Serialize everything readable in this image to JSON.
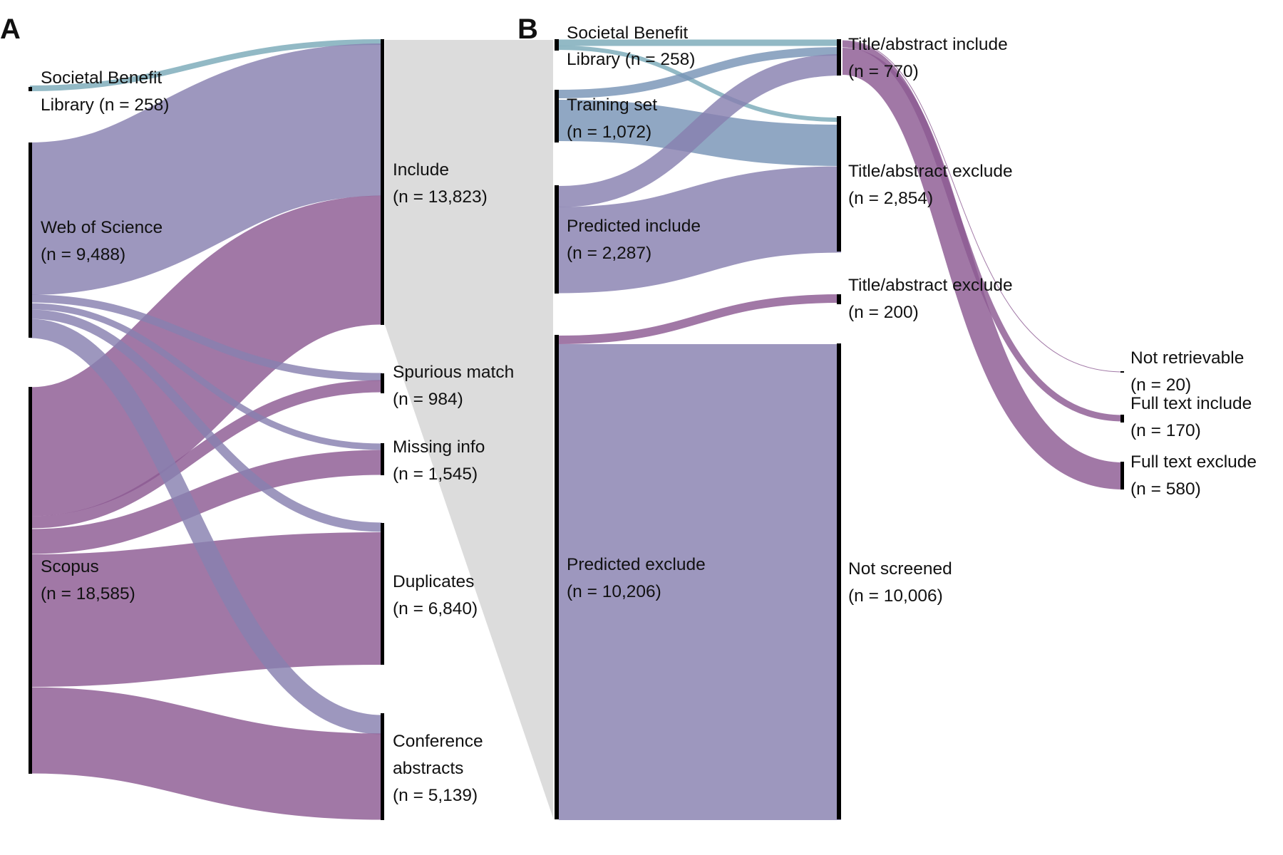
{
  "colors": {
    "purple": "#8c5a93",
    "lavender": "#8880b0",
    "blue": "#7894b6",
    "teal": "#7aaab8",
    "node_bar": "#000000",
    "zoom_wedge": "#dcdcdc"
  },
  "panel_a": {
    "letter": "A",
    "nodes": {
      "sbl": {
        "line1": "Societal Benefit",
        "line2": "Library (n = 258)"
      },
      "wos": {
        "line1": "Web of Science",
        "line2": "(n = 9,488)"
      },
      "scopus": {
        "line1": "Scopus",
        "line2": "(n = 18,585)"
      },
      "include": {
        "line1": "Include",
        "line2": "(n = 13,823)"
      },
      "spurious": {
        "line1": "Spurious match",
        "line2": "(n = 984)"
      },
      "missing": {
        "line1": "Missing info",
        "line2": "(n = 1,545)"
      },
      "duplicates": {
        "line1": "Duplicates",
        "line2": "(n = 6,840)"
      },
      "conference": {
        "line1": "Conference",
        "line2": "abstracts",
        "line3": "(n = 5,139)"
      }
    }
  },
  "panel_b": {
    "letter": "B",
    "nodes": {
      "sbl": {
        "line1": "Societal Benefit",
        "line2": "Library (n = 258)"
      },
      "training": {
        "line1": "Training set",
        "line2": "(n = 1,072)"
      },
      "pred_inc": {
        "line1": "Predicted include",
        "line2": "(n = 2,287)"
      },
      "pred_exc": {
        "line1": "Predicted exclude",
        "line2": "(n = 10,206)"
      },
      "ta_include": {
        "line1": "Title/abstract include",
        "line2": "(n =  770)"
      },
      "ta_exclude1": {
        "line1": "Title/abstract exclude",
        "line2": "(n = 2,854)"
      },
      "ta_exclude2": {
        "line1": "Title/abstract exclude",
        "line2": "(n =  200)"
      },
      "not_screened": {
        "line1": "Not screened",
        "line2": "(n = 10,006)"
      },
      "not_retrievable": {
        "line1": "Not retrievable",
        "line2": "(n = 20)"
      },
      "ft_include": {
        "line1": "Full text include",
        "line2": "(n = 170)"
      },
      "ft_exclude": {
        "line1": "Full text exclude",
        "line2": "(n = 580)"
      }
    }
  }
}
